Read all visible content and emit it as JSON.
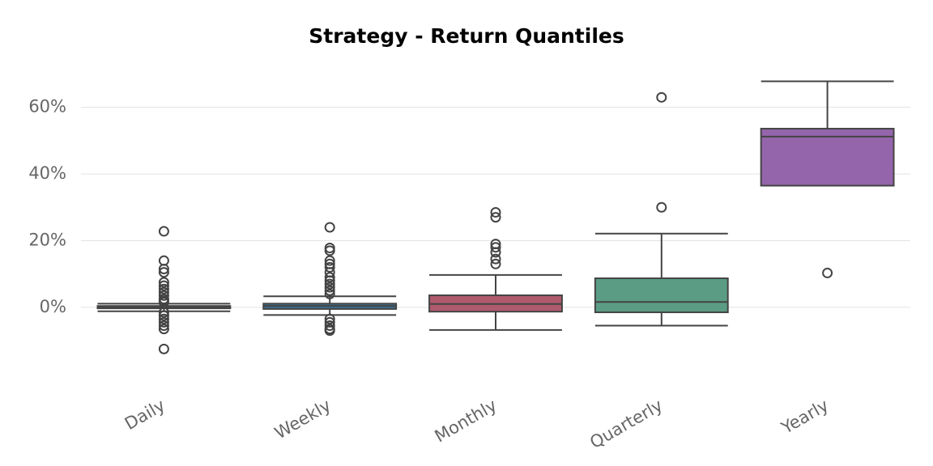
{
  "chart_data": {
    "type": "box",
    "title": "Strategy - Return Quantiles",
    "categories": [
      "Daily",
      "Weekly",
      "Monthly",
      "Quarterly",
      "Yearly"
    ],
    "colors": [
      "#6f7a88",
      "#3d6f94",
      "#b05a6e",
      "#5b9c85",
      "#9565ac"
    ],
    "boxes": [
      {
        "whislo": -1.2,
        "q1": -0.3,
        "med": 0.1,
        "q3": 0.4,
        "whishi": 1.1,
        "fliers": [
          22.8,
          14,
          11.5,
          10.5,
          7.5,
          6.5,
          5.5,
          4.5,
          3.5,
          2.5,
          2,
          1.5,
          -1.5,
          -2.5,
          -3.5,
          -4.5,
          -5.5,
          -6.5,
          -12.5
        ]
      },
      {
        "whislo": -2.3,
        "q1": -0.5,
        "med": 0.4,
        "q3": 1.1,
        "whishi": 3.3,
        "fliers": [
          24,
          17.8,
          17,
          14,
          13,
          12,
          10.5,
          9,
          8,
          7,
          6,
          5,
          4,
          -3.5,
          -4.5,
          -5.5,
          -6.5,
          -7
        ]
      },
      {
        "whislo": -6.8,
        "q1": -1.3,
        "med": 1,
        "q3": 3.6,
        "whishi": 9.7,
        "fliers": [
          28.5,
          27,
          19,
          18,
          16.5,
          14.5,
          13
        ]
      },
      {
        "whislo": -5.5,
        "q1": -1.5,
        "med": 1.6,
        "q3": 8.7,
        "whishi": 22.1,
        "fliers": [
          63,
          30
        ]
      },
      {
        "whislo": 36.5,
        "q1": 36.5,
        "med": 51.2,
        "q3": 53.6,
        "whishi": 67.8,
        "fliers": [
          10.3
        ]
      }
    ],
    "ylim": [
      -18,
      74
    ],
    "yticks": [
      {
        "value": 0,
        "label": "0%"
      },
      {
        "value": 20,
        "label": "20%"
      },
      {
        "value": 40,
        "label": "40%"
      },
      {
        "value": 60,
        "label": "60%"
      }
    ],
    "grid": true
  }
}
